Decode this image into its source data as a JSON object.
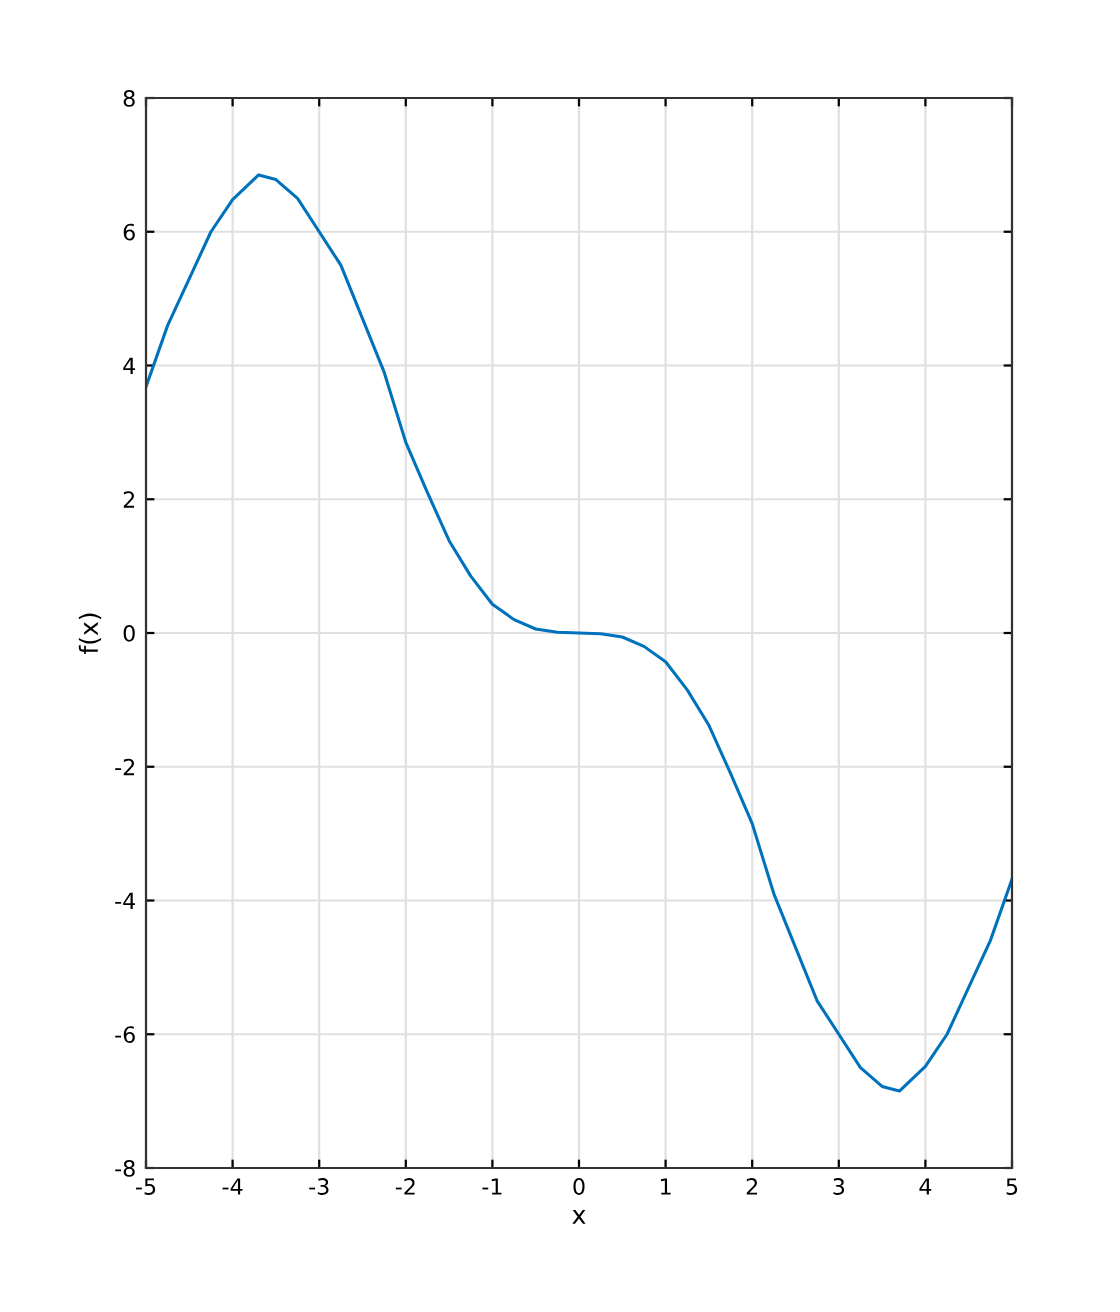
{
  "chart_data": {
    "type": "line",
    "xlabel": "x",
    "ylabel": "f(x)",
    "x": [
      -5,
      -4.75,
      -4.5,
      -4.25,
      -4,
      -3.7,
      -3.5,
      -3.25,
      -3,
      -2.75,
      -2.5,
      -2.25,
      -2,
      -1.75,
      -1.5,
      -1.25,
      -1,
      -0.75,
      -0.5,
      -0.25,
      0,
      0.25,
      0.5,
      0.75,
      1,
      1.25,
      1.5,
      1.75,
      2,
      2.25,
      2.5,
      2.75,
      3,
      3.25,
      3.5,
      3.7,
      4,
      4.25,
      4.5,
      4.75,
      5
    ],
    "series": [
      {
        "color": "#0072bd",
        "values": [
          3.68,
          4.6,
          5.3,
          6.0,
          6.48,
          6.85,
          6.78,
          6.5,
          6.0,
          5.5,
          4.7,
          3.9,
          2.85,
          2.1,
          1.38,
          0.85,
          0.43,
          0.2,
          0.06,
          0.01,
          0,
          -0.01,
          -0.06,
          -0.2,
          -0.43,
          -0.85,
          -1.38,
          -2.1,
          -2.85,
          -3.9,
          -4.7,
          -5.5,
          -6.0,
          -6.5,
          -6.78,
          -6.85,
          -6.48,
          -6.0,
          -5.3,
          -4.6,
          -3.68
        ]
      }
    ],
    "xlim": [
      -5,
      5
    ],
    "xticks": [
      -5,
      -4,
      -3,
      -2,
      -1,
      0,
      1,
      2,
      3,
      4,
      5
    ],
    "ylim": [
      -8,
      8
    ],
    "yticks": [
      -8,
      -6,
      -4,
      -2,
      0,
      2,
      4,
      6,
      8
    ],
    "grid": true,
    "marker": "none",
    "line_style": "solid"
  }
}
